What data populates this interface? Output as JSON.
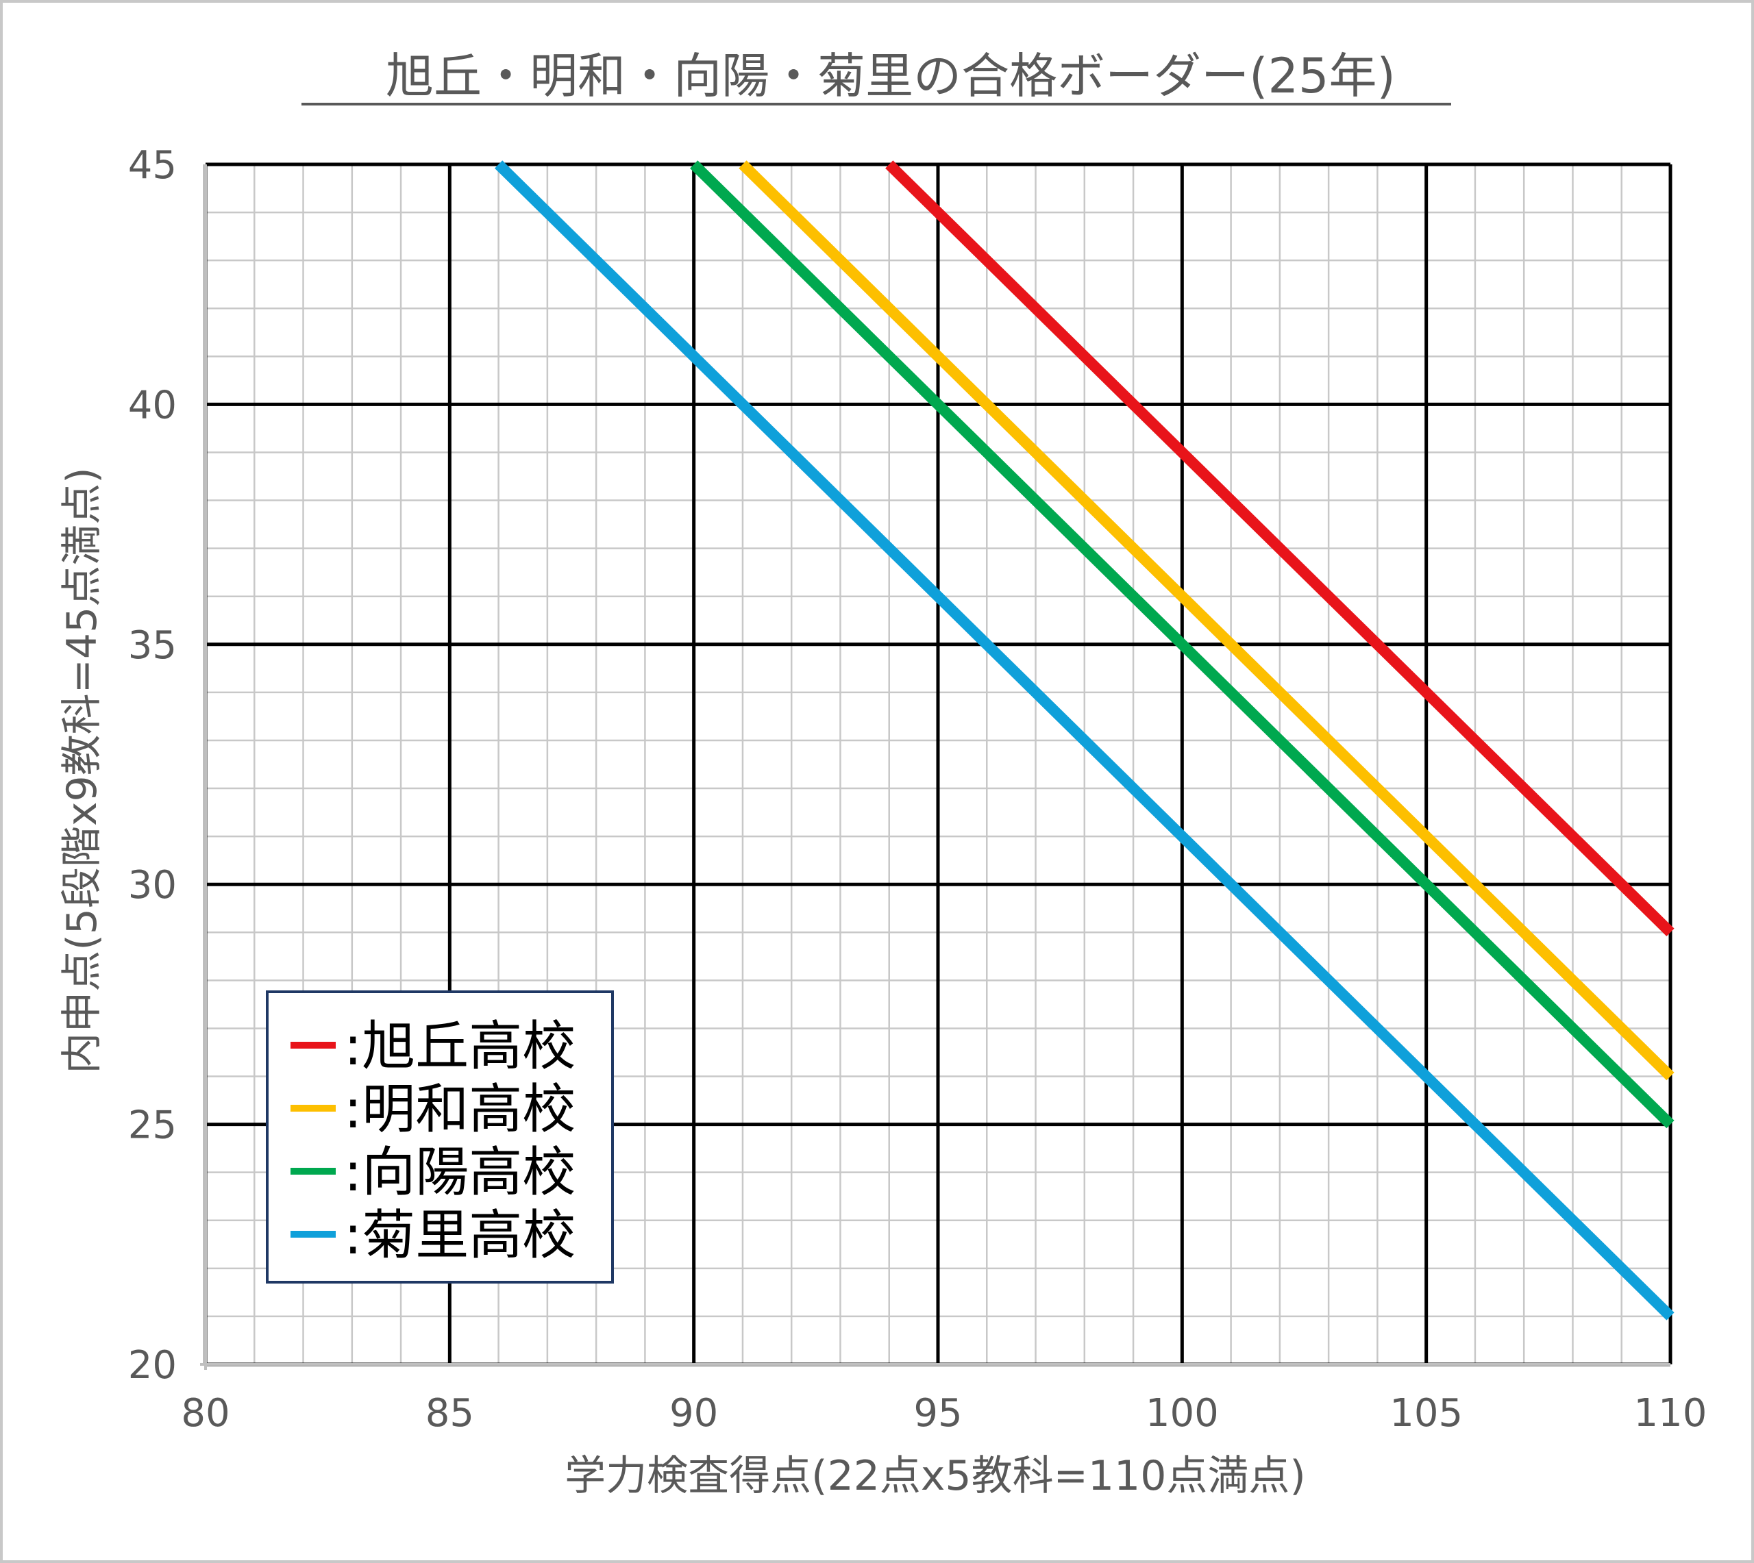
{
  "chart_data": {
    "type": "line",
    "title": "旭丘・明和・向陽・菊里の合格ボーダー(25年)",
    "xlabel": "学力検査得点(22点x5教科=110点満点)",
    "ylabel": "内申点(5段階x9教科=45点満点)",
    "xlim": [
      80,
      110
    ],
    "ylim": [
      20,
      45
    ],
    "x_ticks": [
      "80",
      "85",
      "90",
      "95",
      "100",
      "105",
      "110"
    ],
    "y_ticks": [
      "20",
      "25",
      "30",
      "35",
      "40",
      "45"
    ],
    "grid": true,
    "legend_position": "bottom-left",
    "series": [
      {
        "name": ":旭丘高校",
        "color": "#e8141a",
        "x": [
          94,
          110
        ],
        "y": [
          45,
          29
        ]
      },
      {
        "name": ":明和高校",
        "color": "#fdbf00",
        "x": [
          91,
          110
        ],
        "y": [
          45,
          26
        ]
      },
      {
        "name": ":向陽高校",
        "color": "#00a84f",
        "x": [
          90,
          110
        ],
        "y": [
          45,
          25
        ]
      },
      {
        "name": ":菊里高校",
        "color": "#0fa0da",
        "x": [
          86,
          110
        ],
        "y": [
          45,
          21
        ]
      }
    ]
  }
}
